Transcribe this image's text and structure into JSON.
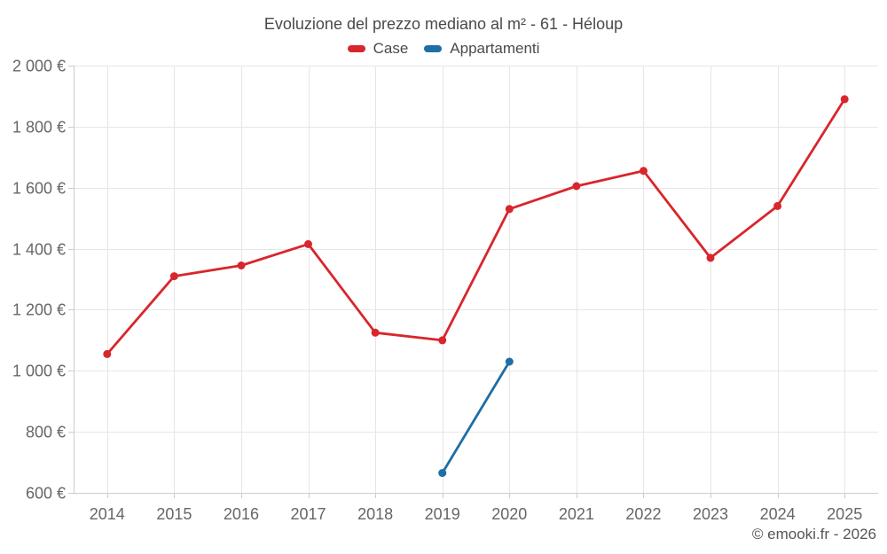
{
  "page": {
    "copyright": "© emooki.fr - 2026"
  },
  "legend": {
    "items": [
      {
        "label": "Case",
        "color": "#d8262c"
      },
      {
        "label": "Appartamenti",
        "color": "#1d6fa5"
      }
    ]
  },
  "chart_data": {
    "type": "line",
    "title": "Evoluzione del prezzo mediano al m² - 61 - Héloup",
    "categories": [
      "2014",
      "2015",
      "2016",
      "2017",
      "2018",
      "2019",
      "2020",
      "2021",
      "2022",
      "2023",
      "2024",
      "2025"
    ],
    "series": [
      {
        "name": "Case",
        "color": "#d8262c",
        "values": [
          1055,
          1310,
          1345,
          1415,
          1125,
          1100,
          1530,
          1605,
          1655,
          1370,
          1540,
          1890
        ]
      },
      {
        "name": "Appartamenti",
        "color": "#1d6fa5",
        "values": [
          null,
          null,
          null,
          null,
          null,
          665,
          1030,
          null,
          null,
          null,
          null,
          null
        ]
      }
    ],
    "xlabel": "",
    "ylabel": "",
    "ylim": [
      600,
      2000
    ],
    "ytick_step": 200,
    "ytick_labels": [
      "600 €",
      "800 €",
      "1 000 €",
      "1 200 €",
      "1 400 €",
      "1 600 €",
      "1 800 €",
      "2 000 €"
    ],
    "grid": true,
    "legend_position": "top",
    "colors": {
      "gridline": "#e6e6e6",
      "axis": "#cccccc",
      "tick": "#cccccc",
      "axis_text": "#666666",
      "background": "#ffffff"
    }
  }
}
